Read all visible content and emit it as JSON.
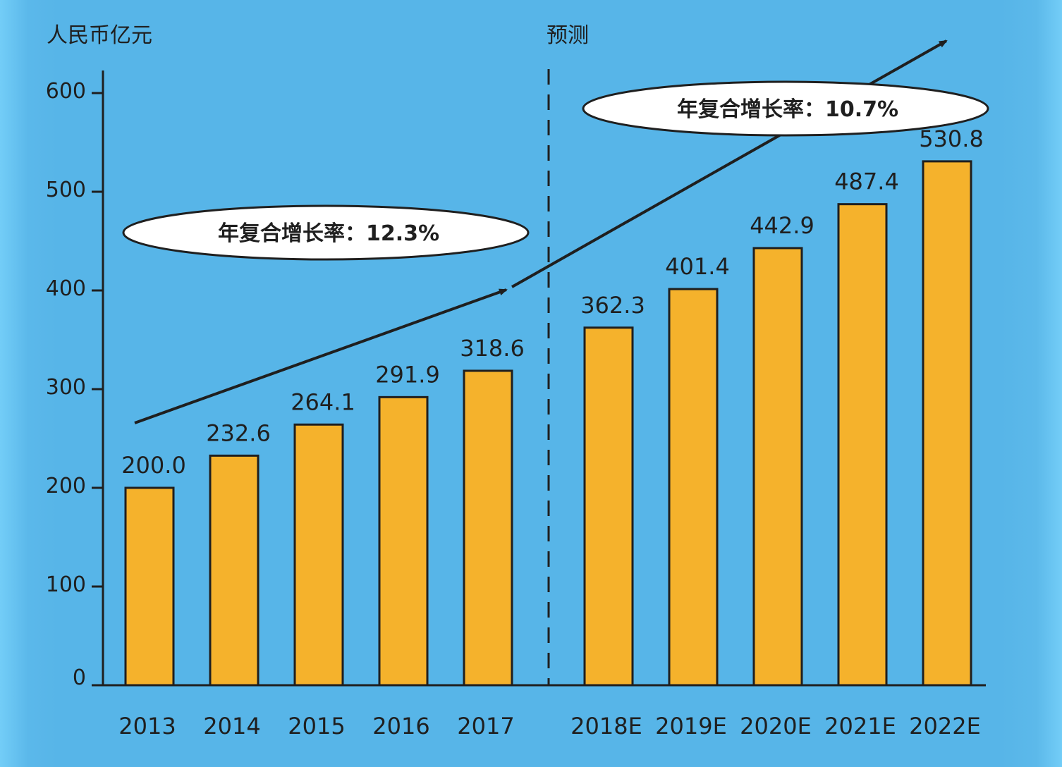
{
  "chart_data": {
    "type": "bar",
    "ylabel": "人民币亿元",
    "forecast_label": "预测",
    "ylim": [
      0,
      600
    ],
    "yticks": [
      "0",
      "100",
      "200",
      "300",
      "400",
      "500",
      "600"
    ],
    "categories": [
      "2013",
      "2014",
      "2015",
      "2016",
      "2017",
      "2018E",
      "2019E",
      "2020E",
      "2021E",
      "2022E"
    ],
    "values": [
      200.0,
      232.6,
      264.1,
      291.9,
      318.6,
      362.3,
      401.4,
      442.9,
      487.4,
      530.8
    ],
    "value_labels": [
      "200.0",
      "232.6",
      "264.1",
      "291.9",
      "318.6",
      "362.3",
      "401.4",
      "442.9",
      "487.4",
      "530.8"
    ],
    "forecast_start_index": 5,
    "annotations": [
      {
        "label": "年复合增长率：12.3%",
        "period": "historical"
      },
      {
        "label": "年复合增长率：10.7%",
        "period": "forecast"
      }
    ],
    "grid": false,
    "legend": "none"
  },
  "colors": {
    "background": "#57b5e8",
    "bar_fill": "#f5b22c",
    "bar_stroke": "#1f1f1f",
    "axis": "#1f1f1f",
    "annotation_fill": "#ffffff"
  }
}
